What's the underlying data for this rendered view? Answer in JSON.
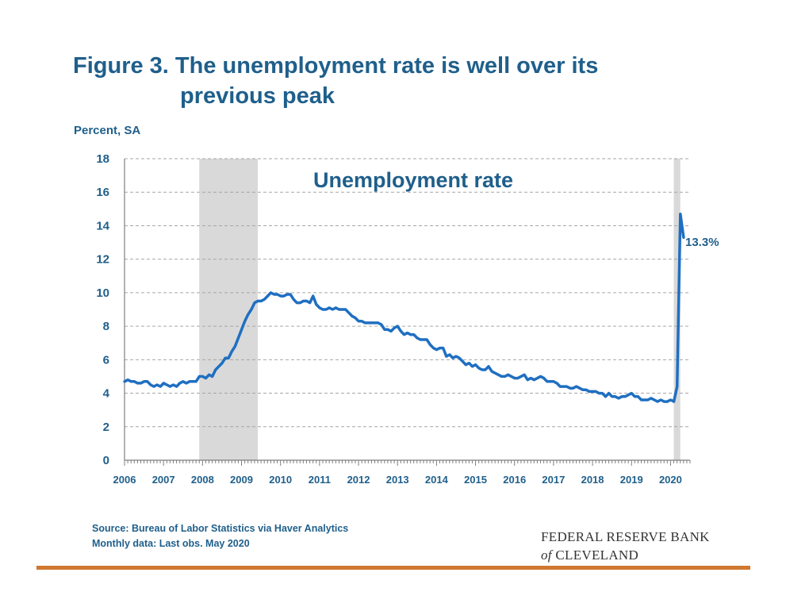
{
  "header": {
    "title_line1": "Figure 3. The unemployment rate is well over its",
    "title_line2": "previous peak",
    "y_unit": "Percent, SA"
  },
  "footer": {
    "source": "Source: Bureau of Labor Statistics via Haver Analytics",
    "note": "Monthly data: Last obs. May 2020",
    "logo_line1": "FEDERAL RESERVE BANK",
    "logo_of": "of",
    "logo_line2": "CLEVELAND"
  },
  "colors": {
    "line": "#1f6fc1",
    "text": "#1f5f8b",
    "recession": "#d9d9d9",
    "rule": "#d0782f"
  },
  "chart_data": {
    "type": "line",
    "title": "Unemployment rate",
    "ylabel": "Percent, SA",
    "ylim": [
      0,
      18
    ],
    "yticks": [
      0,
      2,
      4,
      6,
      8,
      10,
      12,
      14,
      16,
      18
    ],
    "xlim": [
      2006.0,
      2020.5
    ],
    "xticks": [
      "2006",
      "2007",
      "2008",
      "2009",
      "2010",
      "2011",
      "2012",
      "2013",
      "2014",
      "2015",
      "2016",
      "2017",
      "2018",
      "2019",
      "2020"
    ],
    "grid": "horizontal dashed",
    "annotation": {
      "text": "13.3%",
      "x": "2020-05",
      "y": 13.3
    },
    "recessions": [
      {
        "start": "2007-12",
        "end": "2009-06"
      },
      {
        "start": "2020-02",
        "end": "2020-04"
      }
    ],
    "series": [
      {
        "values": [
          {
            "x": "2006-01",
            "y": 4.7
          },
          {
            "x": "2006-02",
            "y": 4.8
          },
          {
            "x": "2006-03",
            "y": 4.7
          },
          {
            "x": "2006-04",
            "y": 4.7
          },
          {
            "x": "2006-05",
            "y": 4.6
          },
          {
            "x": "2006-06",
            "y": 4.6
          },
          {
            "x": "2006-07",
            "y": 4.7
          },
          {
            "x": "2006-08",
            "y": 4.7
          },
          {
            "x": "2006-09",
            "y": 4.5
          },
          {
            "x": "2006-10",
            "y": 4.4
          },
          {
            "x": "2006-11",
            "y": 4.5
          },
          {
            "x": "2006-12",
            "y": 4.4
          },
          {
            "x": "2007-01",
            "y": 4.6
          },
          {
            "x": "2007-02",
            "y": 4.5
          },
          {
            "x": "2007-03",
            "y": 4.4
          },
          {
            "x": "2007-04",
            "y": 4.5
          },
          {
            "x": "2007-05",
            "y": 4.4
          },
          {
            "x": "2007-06",
            "y": 4.6
          },
          {
            "x": "2007-07",
            "y": 4.7
          },
          {
            "x": "2007-08",
            "y": 4.6
          },
          {
            "x": "2007-09",
            "y": 4.7
          },
          {
            "x": "2007-10",
            "y": 4.7
          },
          {
            "x": "2007-11",
            "y": 4.7
          },
          {
            "x": "2007-12",
            "y": 5.0
          },
          {
            "x": "2008-01",
            "y": 5.0
          },
          {
            "x": "2008-02",
            "y": 4.9
          },
          {
            "x": "2008-03",
            "y": 5.1
          },
          {
            "x": "2008-04",
            "y": 5.0
          },
          {
            "x": "2008-05",
            "y": 5.4
          },
          {
            "x": "2008-06",
            "y": 5.6
          },
          {
            "x": "2008-07",
            "y": 5.8
          },
          {
            "x": "2008-08",
            "y": 6.1
          },
          {
            "x": "2008-09",
            "y": 6.1
          },
          {
            "x": "2008-10",
            "y": 6.5
          },
          {
            "x": "2008-11",
            "y": 6.8
          },
          {
            "x": "2008-12",
            "y": 7.3
          },
          {
            "x": "2009-01",
            "y": 7.8
          },
          {
            "x": "2009-02",
            "y": 8.3
          },
          {
            "x": "2009-03",
            "y": 8.7
          },
          {
            "x": "2009-04",
            "y": 9.0
          },
          {
            "x": "2009-05",
            "y": 9.4
          },
          {
            "x": "2009-06",
            "y": 9.5
          },
          {
            "x": "2009-07",
            "y": 9.5
          },
          {
            "x": "2009-08",
            "y": 9.6
          },
          {
            "x": "2009-09",
            "y": 9.8
          },
          {
            "x": "2009-10",
            "y": 10.0
          },
          {
            "x": "2009-11",
            "y": 9.9
          },
          {
            "x": "2009-12",
            "y": 9.9
          },
          {
            "x": "2010-01",
            "y": 9.8
          },
          {
            "x": "2010-02",
            "y": 9.8
          },
          {
            "x": "2010-03",
            "y": 9.9
          },
          {
            "x": "2010-04",
            "y": 9.9
          },
          {
            "x": "2010-05",
            "y": 9.6
          },
          {
            "x": "2010-06",
            "y": 9.4
          },
          {
            "x": "2010-07",
            "y": 9.4
          },
          {
            "x": "2010-08",
            "y": 9.5
          },
          {
            "x": "2010-09",
            "y": 9.5
          },
          {
            "x": "2010-10",
            "y": 9.4
          },
          {
            "x": "2010-11",
            "y": 9.8
          },
          {
            "x": "2010-12",
            "y": 9.3
          },
          {
            "x": "2011-01",
            "y": 9.1
          },
          {
            "x": "2011-02",
            "y": 9.0
          },
          {
            "x": "2011-03",
            "y": 9.0
          },
          {
            "x": "2011-04",
            "y": 9.1
          },
          {
            "x": "2011-05",
            "y": 9.0
          },
          {
            "x": "2011-06",
            "y": 9.1
          },
          {
            "x": "2011-07",
            "y": 9.0
          },
          {
            "x": "2011-08",
            "y": 9.0
          },
          {
            "x": "2011-09",
            "y": 9.0
          },
          {
            "x": "2011-10",
            "y": 8.8
          },
          {
            "x": "2011-11",
            "y": 8.6
          },
          {
            "x": "2011-12",
            "y": 8.5
          },
          {
            "x": "2012-01",
            "y": 8.3
          },
          {
            "x": "2012-02",
            "y": 8.3
          },
          {
            "x": "2012-03",
            "y": 8.2
          },
          {
            "x": "2012-04",
            "y": 8.2
          },
          {
            "x": "2012-05",
            "y": 8.2
          },
          {
            "x": "2012-06",
            "y": 8.2
          },
          {
            "x": "2012-07",
            "y": 8.2
          },
          {
            "x": "2012-08",
            "y": 8.1
          },
          {
            "x": "2012-09",
            "y": 7.8
          },
          {
            "x": "2012-10",
            "y": 7.8
          },
          {
            "x": "2012-11",
            "y": 7.7
          },
          {
            "x": "2012-12",
            "y": 7.9
          },
          {
            "x": "2013-01",
            "y": 8.0
          },
          {
            "x": "2013-02",
            "y": 7.7
          },
          {
            "x": "2013-03",
            "y": 7.5
          },
          {
            "x": "2013-04",
            "y": 7.6
          },
          {
            "x": "2013-05",
            "y": 7.5
          },
          {
            "x": "2013-06",
            "y": 7.5
          },
          {
            "x": "2013-07",
            "y": 7.3
          },
          {
            "x": "2013-08",
            "y": 7.2
          },
          {
            "x": "2013-09",
            "y": 7.2
          },
          {
            "x": "2013-10",
            "y": 7.2
          },
          {
            "x": "2013-11",
            "y": 6.9
          },
          {
            "x": "2013-12",
            "y": 6.7
          },
          {
            "x": "2014-01",
            "y": 6.6
          },
          {
            "x": "2014-02",
            "y": 6.7
          },
          {
            "x": "2014-03",
            "y": 6.7
          },
          {
            "x": "2014-04",
            "y": 6.2
          },
          {
            "x": "2014-05",
            "y": 6.3
          },
          {
            "x": "2014-06",
            "y": 6.1
          },
          {
            "x": "2014-07",
            "y": 6.2
          },
          {
            "x": "2014-08",
            "y": 6.1
          },
          {
            "x": "2014-09",
            "y": 5.9
          },
          {
            "x": "2014-10",
            "y": 5.7
          },
          {
            "x": "2014-11",
            "y": 5.8
          },
          {
            "x": "2014-12",
            "y": 5.6
          },
          {
            "x": "2015-01",
            "y": 5.7
          },
          {
            "x": "2015-02",
            "y": 5.5
          },
          {
            "x": "2015-03",
            "y": 5.4
          },
          {
            "x": "2015-04",
            "y": 5.4
          },
          {
            "x": "2015-05",
            "y": 5.6
          },
          {
            "x": "2015-06",
            "y": 5.3
          },
          {
            "x": "2015-07",
            "y": 5.2
          },
          {
            "x": "2015-08",
            "y": 5.1
          },
          {
            "x": "2015-09",
            "y": 5.0
          },
          {
            "x": "2015-10",
            "y": 5.0
          },
          {
            "x": "2015-11",
            "y": 5.1
          },
          {
            "x": "2015-12",
            "y": 5.0
          },
          {
            "x": "2016-01",
            "y": 4.9
          },
          {
            "x": "2016-02",
            "y": 4.9
          },
          {
            "x": "2016-03",
            "y": 5.0
          },
          {
            "x": "2016-04",
            "y": 5.1
          },
          {
            "x": "2016-05",
            "y": 4.8
          },
          {
            "x": "2016-06",
            "y": 4.9
          },
          {
            "x": "2016-07",
            "y": 4.8
          },
          {
            "x": "2016-08",
            "y": 4.9
          },
          {
            "x": "2016-09",
            "y": 5.0
          },
          {
            "x": "2016-10",
            "y": 4.9
          },
          {
            "x": "2016-11",
            "y": 4.7
          },
          {
            "x": "2016-12",
            "y": 4.7
          },
          {
            "x": "2017-01",
            "y": 4.7
          },
          {
            "x": "2017-02",
            "y": 4.6
          },
          {
            "x": "2017-03",
            "y": 4.4
          },
          {
            "x": "2017-04",
            "y": 4.4
          },
          {
            "x": "2017-05",
            "y": 4.4
          },
          {
            "x": "2017-06",
            "y": 4.3
          },
          {
            "x": "2017-07",
            "y": 4.3
          },
          {
            "x": "2017-08",
            "y": 4.4
          },
          {
            "x": "2017-09",
            "y": 4.3
          },
          {
            "x": "2017-10",
            "y": 4.2
          },
          {
            "x": "2017-11",
            "y": 4.2
          },
          {
            "x": "2017-12",
            "y": 4.1
          },
          {
            "x": "2018-01",
            "y": 4.1
          },
          {
            "x": "2018-02",
            "y": 4.1
          },
          {
            "x": "2018-03",
            "y": 4.0
          },
          {
            "x": "2018-04",
            "y": 4.0
          },
          {
            "x": "2018-05",
            "y": 3.8
          },
          {
            "x": "2018-06",
            "y": 4.0
          },
          {
            "x": "2018-07",
            "y": 3.8
          },
          {
            "x": "2018-08",
            "y": 3.8
          },
          {
            "x": "2018-09",
            "y": 3.7
          },
          {
            "x": "2018-10",
            "y": 3.8
          },
          {
            "x": "2018-11",
            "y": 3.8
          },
          {
            "x": "2018-12",
            "y": 3.9
          },
          {
            "x": "2019-01",
            "y": 4.0
          },
          {
            "x": "2019-02",
            "y": 3.8
          },
          {
            "x": "2019-03",
            "y": 3.8
          },
          {
            "x": "2019-04",
            "y": 3.6
          },
          {
            "x": "2019-05",
            "y": 3.6
          },
          {
            "x": "2019-06",
            "y": 3.6
          },
          {
            "x": "2019-07",
            "y": 3.7
          },
          {
            "x": "2019-08",
            "y": 3.6
          },
          {
            "x": "2019-09",
            "y": 3.5
          },
          {
            "x": "2019-10",
            "y": 3.6
          },
          {
            "x": "2019-11",
            "y": 3.5
          },
          {
            "x": "2019-12",
            "y": 3.5
          },
          {
            "x": "2020-01",
            "y": 3.6
          },
          {
            "x": "2020-02",
            "y": 3.5
          },
          {
            "x": "2020-03",
            "y": 4.4
          },
          {
            "x": "2020-04",
            "y": 14.7
          },
          {
            "x": "2020-05",
            "y": 13.3
          }
        ]
      }
    ]
  }
}
